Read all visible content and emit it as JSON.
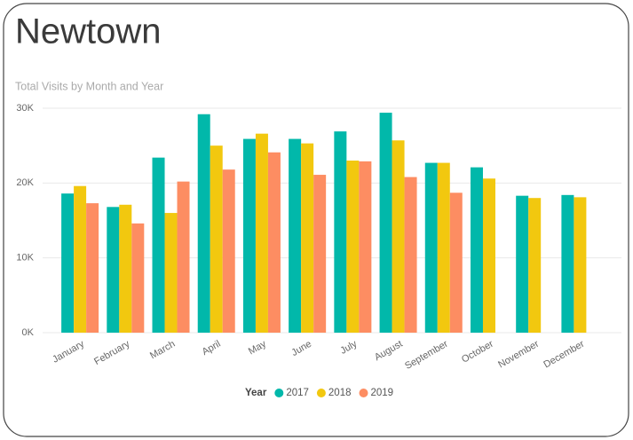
{
  "chart_data": {
    "type": "bar",
    "title": "Newtown",
    "subtitle": "Total Visits by Month and Year",
    "legend_title": "Year",
    "categories": [
      "January",
      "February",
      "March",
      "April",
      "May",
      "June",
      "July",
      "August",
      "September",
      "October",
      "November",
      "December"
    ],
    "series": [
      {
        "name": "2017",
        "color": "#01B8AA",
        "values": [
          18600,
          16800,
          23400,
          29200,
          25900,
          25900,
          26900,
          29400,
          22700,
          22100,
          18300,
          18400
        ]
      },
      {
        "name": "2018",
        "color": "#F2C80F",
        "values": [
          19600,
          17100,
          16000,
          25000,
          26600,
          25300,
          23000,
          25700,
          22700,
          20600,
          18000,
          18100
        ]
      },
      {
        "name": "2019",
        "color": "#FD8D62",
        "values": [
          17300,
          14600,
          20200,
          21800,
          24100,
          21100,
          22900,
          20800,
          18700,
          null,
          null,
          null
        ]
      }
    ],
    "ylim": [
      0,
      30000
    ],
    "yticks": [
      {
        "value": 0,
        "label": "0K"
      },
      {
        "value": 10000,
        "label": "10K"
      },
      {
        "value": 20000,
        "label": "20K"
      },
      {
        "value": 30000,
        "label": "30K"
      }
    ],
    "grid": true,
    "legend": "bottom"
  }
}
